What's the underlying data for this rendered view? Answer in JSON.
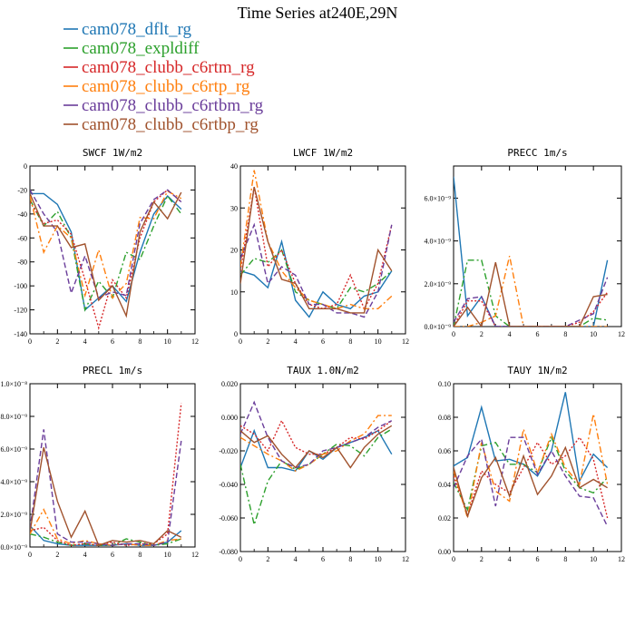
{
  "figure": {
    "title": "Time Series at240E,29N",
    "legend": [
      {
        "name": "cam078_dflt_rg",
        "color": "#1f77b4",
        "dash": "solid"
      },
      {
        "name": "cam078_expldiff",
        "color": "#2ca02c",
        "dash": "dashdot"
      },
      {
        "name": "cam078_clubb_c6rtm_rg",
        "color": "#d62728",
        "dash": "dotted"
      },
      {
        "name": "cam078_clubb_c6rtp_rg",
        "color": "#ff7f0e",
        "dash": "dashdot"
      },
      {
        "name": "cam078_clubb_c6rtbm_rg",
        "color": "#6a3d9a",
        "dash": "dashed"
      },
      {
        "name": "cam078_clubb_c6rtbp_rg",
        "color": "#a0522d",
        "dash": "solid"
      }
    ]
  },
  "chart_data": [
    {
      "type": "line",
      "title": "SWCF  1W/m2",
      "x": [
        0,
        1,
        2,
        3,
        4,
        5,
        6,
        7,
        8,
        9,
        10,
        11
      ],
      "xlim": [
        0,
        12
      ],
      "ylim": [
        -140,
        0
      ],
      "xticks": [
        0,
        2,
        4,
        6,
        8,
        10,
        12
      ],
      "yticks": [
        0,
        -20,
        -40,
        -60,
        -80,
        -100,
        -120,
        -140
      ],
      "ytick_labels": [
        "0",
        "-20",
        "-40",
        "-60",
        "-80",
        "-100",
        "-120",
        "-140"
      ],
      "series": [
        {
          "values": [
            -23,
            -23,
            -32,
            -55,
            -120,
            -110,
            -100,
            -113,
            -72,
            -40,
            -25,
            -36
          ]
        },
        {
          "values": [
            -28,
            -50,
            -38,
            -60,
            -120,
            -96,
            -110,
            -72,
            -78,
            -50,
            -25,
            -40
          ]
        },
        {
          "values": [
            -30,
            -48,
            -45,
            -57,
            -95,
            -135,
            -95,
            -110,
            -60,
            -30,
            -20,
            -30
          ]
        },
        {
          "values": [
            -25,
            -72,
            -50,
            -60,
            -108,
            -70,
            -110,
            -98,
            -43,
            -44,
            -21,
            -27
          ]
        },
        {
          "values": [
            -20,
            -40,
            -55,
            -106,
            -75,
            -110,
            -105,
            -108,
            -48,
            -28,
            -20,
            -30
          ]
        },
        {
          "values": [
            -23,
            -50,
            -50,
            -68,
            -65,
            -112,
            -100,
            -125,
            -55,
            -30,
            -44,
            -22
          ]
        }
      ]
    },
    {
      "type": "line",
      "title": "LWCF  1W/m2",
      "x": [
        0,
        1,
        2,
        3,
        4,
        5,
        6,
        7,
        8,
        9,
        10,
        11
      ],
      "xlim": [
        0,
        12
      ],
      "ylim": [
        0,
        40
      ],
      "xticks": [
        0,
        2,
        4,
        6,
        8,
        10,
        12
      ],
      "yticks": [
        0,
        10,
        20,
        30,
        40
      ],
      "ytick_labels": [
        "0",
        "10",
        "20",
        "30",
        "40"
      ],
      "series": [
        {
          "values": [
            15,
            14,
            11,
            22,
            8,
            4,
            10,
            7,
            6,
            9,
            10,
            15
          ]
        },
        {
          "values": [
            14,
            18,
            17,
            20,
            10,
            8,
            7,
            6,
            11,
            10,
            12,
            15
          ]
        },
        {
          "values": [
            15,
            35,
            16,
            20,
            12,
            7,
            6,
            7,
            14,
            6,
            12,
            26
          ]
        },
        {
          "values": [
            16,
            39,
            22,
            15,
            11,
            8,
            7,
            6,
            7,
            6,
            6,
            9
          ]
        },
        {
          "values": [
            18,
            26,
            12,
            16,
            14,
            7,
            7,
            5,
            5,
            4,
            10,
            26
          ]
        },
        {
          "values": [
            12,
            35,
            22,
            13,
            12,
            6,
            6,
            6,
            5,
            5,
            20,
            15
          ]
        }
      ]
    },
    {
      "type": "line",
      "title": "PRECC  1m/s",
      "x": [
        0,
        1,
        2,
        3,
        4,
        5,
        6,
        7,
        8,
        9,
        10,
        11
      ],
      "xlim": [
        0,
        12
      ],
      "ylim": [
        0,
        7.5e-09
      ],
      "xticks": [
        0,
        2,
        4,
        6,
        8,
        10,
        12
      ],
      "yticks": [
        0,
        2e-09,
        4e-09,
        6e-09
      ],
      "ytick_labels": [
        "0.0×10⁻⁹",
        "2.0×10⁻⁹",
        "4.0×10⁻⁹",
        "6.0×10⁻⁹"
      ],
      "series": [
        {
          "values": [
            7e-09,
            5e-10,
            1.4e-09,
            0,
            0,
            0,
            0,
            0,
            0,
            0,
            0,
            3.1e-09
          ]
        },
        {
          "values": [
            0,
            3.1e-09,
            3.1e-09,
            5e-10,
            0,
            0,
            0,
            0,
            0,
            0,
            4e-10,
            3e-10
          ]
        },
        {
          "values": [
            0,
            1.2e-09,
            1.2e-09,
            0,
            0,
            0,
            0,
            0,
            0,
            2e-10,
            7e-10,
            1.6e-09
          ]
        },
        {
          "values": [
            0,
            0,
            2e-10,
            5e-10,
            3.3e-09,
            0,
            0,
            0,
            0,
            0,
            0,
            0
          ]
        },
        {
          "values": [
            2e-10,
            1.3e-09,
            1.4e-09,
            0,
            0,
            0,
            0,
            0,
            0,
            3e-10,
            6e-10,
            2.3e-09
          ]
        },
        {
          "values": [
            0,
            9e-10,
            0,
            3e-09,
            0,
            0,
            0,
            0,
            0,
            0,
            1.4e-09,
            1.5e-09
          ]
        }
      ]
    },
    {
      "type": "line",
      "title": "PRECL  1m/s",
      "x": [
        0,
        1,
        2,
        3,
        4,
        5,
        6,
        7,
        8,
        9,
        10,
        11
      ],
      "xlim": [
        0,
        12
      ],
      "ylim": [
        0,
        1e-08
      ],
      "xticks": [
        0,
        2,
        4,
        6,
        8,
        10,
        12
      ],
      "yticks": [
        0,
        2e-09,
        4e-09,
        6e-09,
        8e-09,
        1e-08
      ],
      "ytick_labels": [
        "0.0×10⁻⁹",
        "2.0×10⁻⁹",
        "4.0×10⁻⁹",
        "6.0×10⁻⁹",
        "8.0×10⁻⁹",
        "1.0×10⁻⁸"
      ],
      "series": [
        {
          "values": [
            1.3e-09,
            4e-10,
            2e-10,
            1e-10,
            1e-10,
            1e-10,
            1e-10,
            2e-10,
            1e-10,
            1e-10,
            3e-10,
            1e-09
          ]
        },
        {
          "values": [
            8e-10,
            6e-10,
            3e-10,
            1e-10,
            2e-10,
            1e-10,
            1e-10,
            5e-10,
            3e-10,
            1e-10,
            2e-10,
            5e-10
          ]
        },
        {
          "values": [
            1e-09,
            1.2e-09,
            4e-10,
            1e-10,
            2e-10,
            1e-10,
            3e-10,
            1e-10,
            2e-10,
            2e-10,
            8e-10,
            8.8e-09
          ]
        },
        {
          "values": [
            8e-10,
            2.3e-09,
            5e-10,
            2e-10,
            4e-10,
            2e-10,
            1e-10,
            2e-10,
            1e-10,
            1e-10,
            4e-10,
            5e-10
          ]
        },
        {
          "values": [
            1.1e-09,
            7.2e-09,
            8e-10,
            3e-10,
            3e-10,
            2e-10,
            1e-10,
            2e-10,
            2e-10,
            1e-10,
            3e-10,
            6.5e-09
          ]
        },
        {
          "values": [
            9e-10,
            6.1e-09,
            2.8e-09,
            6e-10,
            2.2e-09,
            1e-10,
            4e-10,
            3e-10,
            4e-10,
            2e-10,
            1e-09,
            6e-10
          ]
        }
      ]
    },
    {
      "type": "line",
      "title": "TAUX  1.0N/m2",
      "x": [
        0,
        1,
        2,
        3,
        4,
        5,
        6,
        7,
        8,
        9,
        10,
        11
      ],
      "xlim": [
        0,
        12
      ],
      "ylim": [
        -0.08,
        0.02
      ],
      "xticks": [
        0,
        2,
        4,
        6,
        8,
        10,
        12
      ],
      "yticks": [
        0.02,
        0,
        -0.02,
        -0.04,
        -0.06,
        -0.08
      ],
      "ytick_labels": [
        "0.020",
        "0.000",
        "-0.020",
        "-0.040",
        "-0.060",
        "-0.080"
      ],
      "series": [
        {
          "values": [
            -0.03,
            -0.008,
            -0.03,
            -0.03,
            -0.032,
            -0.02,
            -0.025,
            -0.018,
            -0.015,
            -0.012,
            -0.008,
            -0.022
          ]
        },
        {
          "values": [
            -0.028,
            -0.064,
            -0.038,
            -0.026,
            -0.031,
            -0.028,
            -0.022,
            -0.016,
            -0.017,
            -0.023,
            -0.012,
            -0.007
          ]
        },
        {
          "values": [
            -0.005,
            -0.01,
            -0.02,
            -0.002,
            -0.018,
            -0.022,
            -0.022,
            -0.018,
            -0.012,
            -0.013,
            -0.008,
            -0.002
          ]
        },
        {
          "values": [
            -0.012,
            -0.017,
            -0.022,
            -0.026,
            -0.032,
            -0.028,
            -0.022,
            -0.02,
            -0.014,
            -0.01,
            0.001,
            0.001
          ]
        },
        {
          "values": [
            -0.01,
            0.009,
            -0.012,
            -0.026,
            -0.03,
            -0.028,
            -0.02,
            -0.018,
            -0.015,
            -0.012,
            -0.006,
            -0.002
          ]
        },
        {
          "values": [
            -0.008,
            -0.015,
            -0.011,
            -0.022,
            -0.03,
            -0.02,
            -0.024,
            -0.018,
            -0.03,
            -0.018,
            -0.01,
            -0.005
          ]
        }
      ]
    },
    {
      "type": "line",
      "title": "TAUY  1N/m2",
      "x": [
        0,
        1,
        2,
        3,
        4,
        5,
        6,
        7,
        8,
        9,
        10,
        11
      ],
      "xlim": [
        0,
        12
      ],
      "ylim": [
        0,
        0.1
      ],
      "xticks": [
        0,
        2,
        4,
        6,
        8,
        10,
        12
      ],
      "yticks": [
        0,
        0.02,
        0.04,
        0.06,
        0.08,
        0.1
      ],
      "ytick_labels": [
        "0.00",
        "0.02",
        "0.04",
        "0.06",
        "0.08",
        "0.10"
      ],
      "series": [
        {
          "values": [
            0.051,
            0.056,
            0.086,
            0.054,
            0.055,
            0.052,
            0.045,
            0.06,
            0.095,
            0.042,
            0.058,
            0.05
          ]
        },
        {
          "values": [
            0.041,
            0.025,
            0.063,
            0.065,
            0.052,
            0.052,
            0.047,
            0.068,
            0.048,
            0.038,
            0.035,
            0.044
          ]
        },
        {
          "values": [
            0.045,
            0.022,
            0.048,
            0.04,
            0.035,
            0.05,
            0.065,
            0.052,
            0.057,
            0.068,
            0.055,
            0.02
          ]
        },
        {
          "values": [
            0.048,
            0.02,
            0.065,
            0.036,
            0.03,
            0.073,
            0.047,
            0.07,
            0.05,
            0.04,
            0.082,
            0.04
          ]
        },
        {
          "values": [
            0.038,
            0.057,
            0.067,
            0.027,
            0.068,
            0.068,
            0.046,
            0.06,
            0.045,
            0.033,
            0.032,
            0.015
          ]
        },
        {
          "values": [
            0.05,
            0.021,
            0.044,
            0.056,
            0.033,
            0.057,
            0.034,
            0.045,
            0.062,
            0.038,
            0.043,
            0.038
          ]
        }
      ]
    }
  ]
}
